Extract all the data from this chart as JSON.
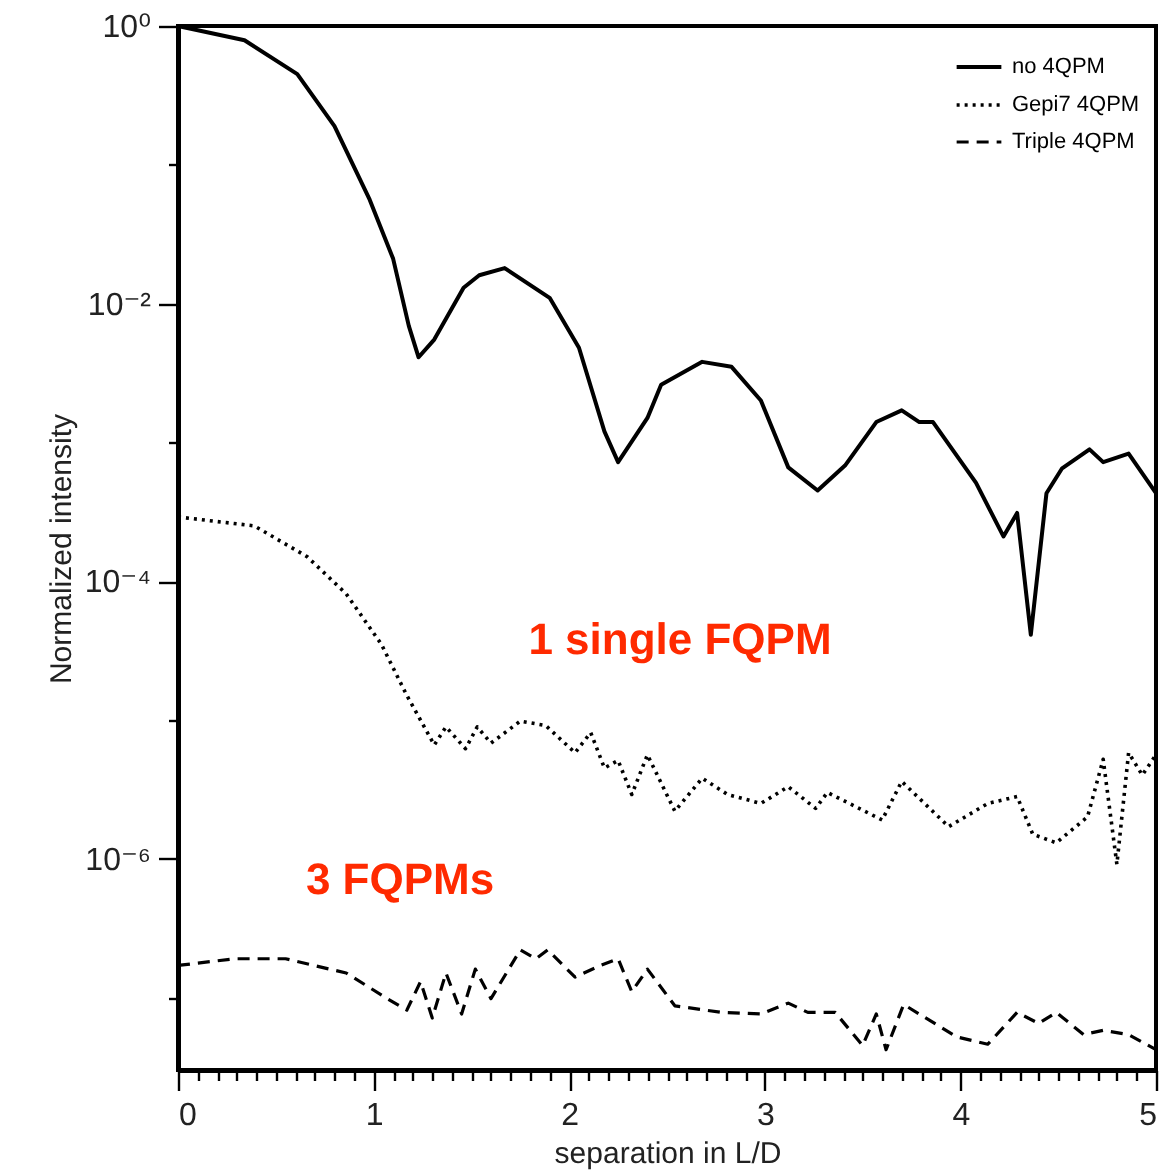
{
  "chart_data": {
    "type": "line",
    "xlabel": "separation in L/D",
    "ylabel": "Normalized intensity",
    "log": "y",
    "legend": "top right",
    "grid": false,
    "xlim": [
      0,
      5
    ],
    "ylim": [
      3e-08,
      1
    ],
    "xticks": [
      0,
      {
        "value": 0.1,
        "label": null
      },
      {
        "value": 0.2,
        "label": null
      },
      {
        "value": 0.3,
        "label": null
      },
      {
        "value": 0.4,
        "label": null
      },
      {
        "value": 0.5,
        "label": null
      },
      {
        "value": 0.6,
        "label": null
      },
      {
        "value": 0.7,
        "label": null
      },
      {
        "value": 0.8,
        "label": null
      },
      {
        "value": 0.9,
        "label": null
      },
      1,
      {
        "value": 1.1,
        "label": null
      },
      {
        "value": 1.2,
        "label": null
      },
      {
        "value": 1.3,
        "label": null
      },
      {
        "value": 1.4,
        "label": null
      },
      {
        "value": 1.5,
        "label": null
      },
      {
        "value": 1.6,
        "label": null
      },
      {
        "value": 1.7,
        "label": null
      },
      {
        "value": 1.8,
        "label": null
      },
      {
        "value": 1.9,
        "label": null
      },
      2,
      {
        "value": 2.1,
        "label": null
      },
      {
        "value": 2.2,
        "label": null
      },
      {
        "value": 2.3,
        "label": null
      },
      {
        "value": 2.4,
        "label": null
      },
      {
        "value": 2.5,
        "label": null
      },
      {
        "value": 2.6,
        "label": null
      },
      {
        "value": 2.7,
        "label": null
      },
      {
        "value": 2.8,
        "label": null
      },
      {
        "value": 2.9,
        "label": null
      },
      3,
      {
        "value": 3.1,
        "label": null
      },
      {
        "value": 3.2,
        "label": null
      },
      {
        "value": 3.3,
        "label": null
      },
      {
        "value": 3.4,
        "label": null
      },
      {
        "value": 3.5,
        "label": null
      },
      {
        "value": 3.6,
        "label": null
      },
      {
        "value": 3.7,
        "label": null
      },
      {
        "value": 3.8,
        "label": null
      },
      {
        "value": 3.9,
        "label": null
      },
      4,
      {
        "value": 4.1,
        "label": null
      },
      {
        "value": 4.2,
        "label": null
      },
      {
        "value": 4.3,
        "label": null
      },
      {
        "value": 4.4,
        "label": null
      },
      {
        "value": 4.5,
        "label": null
      },
      {
        "value": 4.6,
        "label": null
      },
      {
        "value": 4.7,
        "label": null
      },
      {
        "value": 4.8,
        "label": null
      },
      {
        "value": 4.9,
        "label": null
      },
      5
    ],
    "yticks": [
      {
        "value": 1e-07,
        "label": null
      },
      {
        "value": 1e-06,
        "label": "10⁻⁶"
      },
      {
        "value": 1e-05,
        "label": null
      },
      {
        "value": 0.0001,
        "label": "10⁻⁴"
      },
      {
        "value": 0.001,
        "label": null
      },
      {
        "value": 0.01,
        "label": "10⁻²"
      },
      {
        "value": 0.1,
        "label": null
      },
      {
        "value": 1,
        "label": "10⁰"
      }
    ],
    "annotations": [
      "1 single FQPM",
      "3 FQPMs"
    ],
    "series": [
      {
        "name": "no 4QPM",
        "color": "#000000",
        "line_style": "solid",
        "x": [
          0,
          0.34,
          0.61,
          0.8,
          0.98,
          1.1,
          1.18,
          1.23,
          1.31,
          1.46,
          1.54,
          1.67,
          1.9,
          2.05,
          2.18,
          2.25,
          2.4,
          2.47,
          2.68,
          2.83,
          2.98,
          3.12,
          3.27,
          3.41,
          3.57,
          3.7,
          3.79,
          3.86,
          4.08,
          4.22,
          4.29,
          4.36,
          4.44,
          4.52,
          4.66,
          4.73,
          4.86,
          5
        ],
        "values": [
          1,
          0.79,
          0.45,
          0.19,
          0.056,
          0.021,
          0.0069,
          0.0041,
          0.0055,
          0.013,
          0.016,
          0.018,
          0.011,
          0.0048,
          0.0012,
          0.00072,
          0.0015,
          0.0026,
          0.0038,
          0.0035,
          0.002,
          0.00066,
          0.00045,
          0.00068,
          0.0014,
          0.0017,
          0.0014,
          0.0014,
          0.00051,
          0.00021,
          0.00031,
          4.1e-05,
          0.00043,
          0.00065,
          0.00089,
          0.00072,
          0.00083,
          0.00043
        ]
      },
      {
        "name": "Gepi7 4QPM",
        "color": "#000000",
        "line_style": "dotted",
        "x": [
          0,
          0.39,
          0.66,
          0.86,
          1.04,
          1.17,
          1.31,
          1.37,
          1.47,
          1.53,
          1.6,
          1.75,
          1.88,
          2.03,
          2.11,
          2.18,
          2.25,
          2.32,
          2.4,
          2.54,
          2.68,
          2.81,
          2.98,
          3.12,
          3.26,
          3.32,
          3.6,
          3.7,
          3.94,
          4.14,
          4.29,
          4.37,
          4.49,
          4.65,
          4.73,
          4.8,
          4.86,
          4.93,
          5
        ],
        "values": [
          0.00029,
          0.00025,
          0.00015,
          8.1e-05,
          3.5e-05,
          1.5e-05,
          6.6e-06,
          8.9e-06,
          6.2e-06,
          8.9e-06,
          6.8e-06,
          9.8e-06,
          9.1e-06,
          5.8e-06,
          8.1e-06,
          4.5e-06,
          5.1e-06,
          2.9e-06,
          5.6e-06,
          2.2e-06,
          3.8e-06,
          2.9e-06,
          2.5e-06,
          3.3e-06,
          2.3e-06,
          3e-06,
          1.9e-06,
          3.6e-06,
          1.7e-06,
          2.5e-06,
          2.8e-06,
          1.5e-06,
          1.3e-06,
          2e-06,
          5.2e-06,
          9.1e-07,
          5.8e-06,
          4e-06,
          5.6e-06
        ]
      },
      {
        "name": "Triple 4QPM",
        "color": "#000000",
        "line_style": "dashed",
        "x": [
          0,
          0.29,
          0.55,
          0.86,
          1.07,
          1.17,
          1.24,
          1.3,
          1.37,
          1.45,
          1.52,
          1.6,
          1.75,
          1.83,
          1.89,
          2.03,
          2.16,
          2.25,
          2.32,
          2.4,
          2.54,
          2.78,
          2.98,
          3.12,
          3.22,
          3.36,
          3.5,
          3.57,
          3.62,
          3.71,
          3.98,
          4.14,
          4.29,
          4.4,
          4.49,
          4.63,
          4.73,
          4.86,
          5
        ],
        "values": [
          1.7e-07,
          1.9e-07,
          1.9e-07,
          1.5e-07,
          9.8e-08,
          8.1e-08,
          1.3e-07,
          7.1e-08,
          1.5e-07,
          7.6e-08,
          1.6e-07,
          9.8e-08,
          2.2e-07,
          1.9e-07,
          2.2e-07,
          1.4e-07,
          1.7e-07,
          1.9e-07,
          1.1e-07,
          1.6e-07,
          8.7e-08,
          7.8e-08,
          7.6e-08,
          9.1e-08,
          7.8e-08,
          7.8e-08,
          4.5e-08,
          7.6e-08,
          4.2e-08,
          8.9e-08,
          5.2e-08,
          4.6e-08,
          7.8e-08,
          6.5e-08,
          7.8e-08,
          5.4e-08,
          5.8e-08,
          5.4e-08,
          4.2e-08
        ]
      }
    ]
  }
}
